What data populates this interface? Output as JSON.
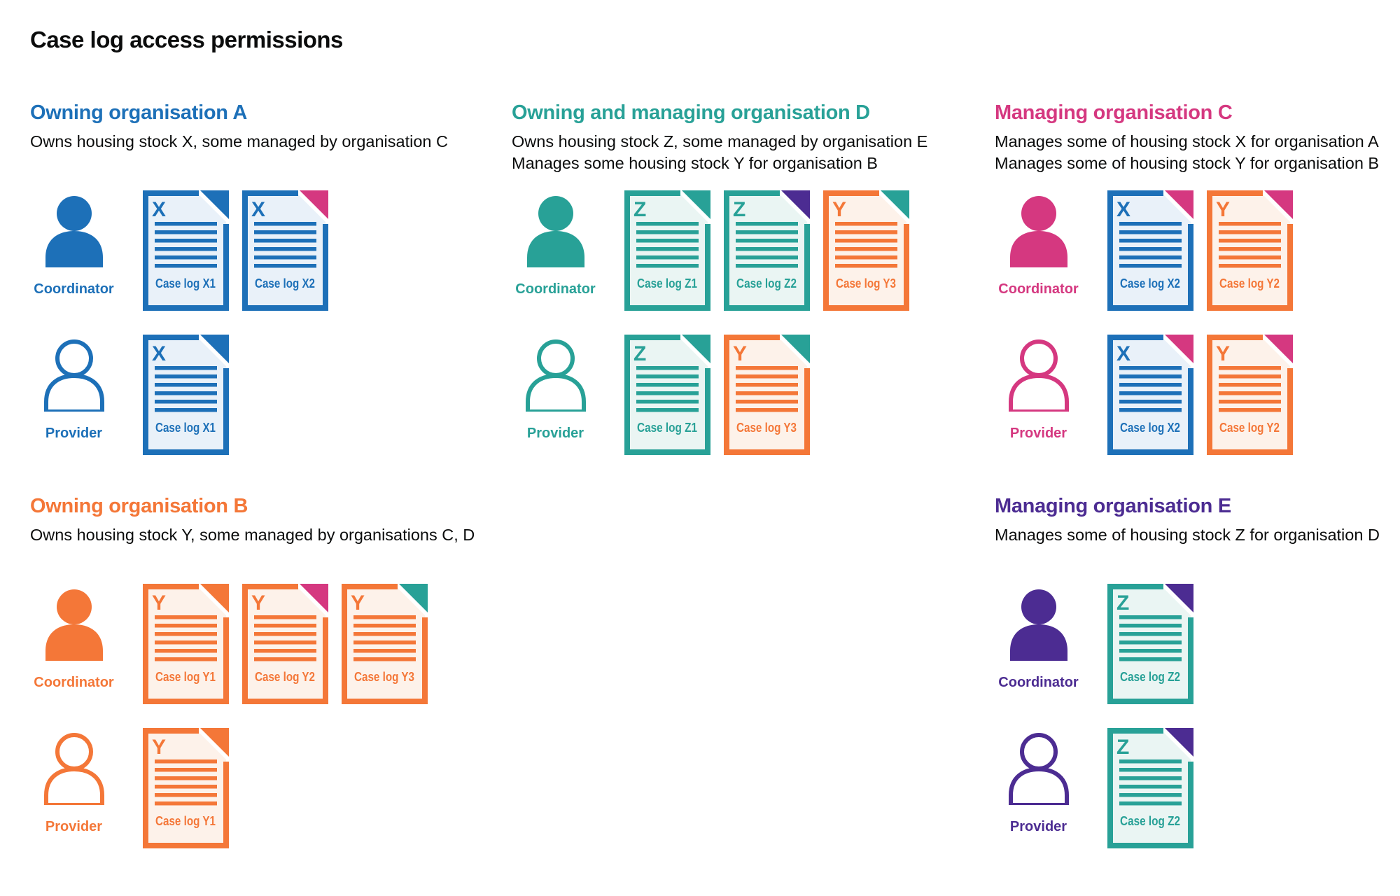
{
  "title": "Case log access permissions",
  "palette": {
    "blue": {
      "main": "#1d70b8",
      "tint": "#e9f1f9"
    },
    "teal": {
      "main": "#28a197",
      "tint": "#eaf5f3"
    },
    "orange": {
      "main": "#f47738",
      "tint": "#fdf2ea"
    },
    "pink": {
      "main": "#d53880",
      "tint": "#fbebf2"
    },
    "purple": {
      "main": "#4c2c92",
      "tint": "#edeaf5"
    },
    "text": "#0b0c0c"
  },
  "roles": {
    "coordinator": "Coordinator",
    "provider": "Provider"
  },
  "organisations": [
    {
      "name": "Owning organisation A",
      "color": "blue",
      "description_lines": [
        "Owns housing stock X, some managed by organisation C"
      ],
      "rows": [
        {
          "role": "coordinator",
          "docs": [
            {
              "letter": "X",
              "label": "Case log X1",
              "doc_color": "blue",
              "flap_color": "blue"
            },
            {
              "letter": "X",
              "label": "Case log X2",
              "doc_color": "blue",
              "flap_color": "pink"
            }
          ]
        },
        {
          "role": "provider",
          "docs": [
            {
              "letter": "X",
              "label": "Case log X1",
              "doc_color": "blue",
              "flap_color": "blue"
            }
          ]
        }
      ]
    },
    {
      "name": "Owning and managing organisation D",
      "color": "teal",
      "description_lines": [
        "Owns housing stock Z, some managed by organisation E",
        "Manages some housing stock Y for organisation B"
      ],
      "rows": [
        {
          "role": "coordinator",
          "docs": [
            {
              "letter": "Z",
              "label": "Case log Z1",
              "doc_color": "teal",
              "flap_color": "teal"
            },
            {
              "letter": "Z",
              "label": "Case log Z2",
              "doc_color": "teal",
              "flap_color": "purple"
            },
            {
              "letter": "Y",
              "label": "Case log Y3",
              "doc_color": "orange",
              "flap_color": "teal"
            }
          ]
        },
        {
          "role": "provider",
          "docs": [
            {
              "letter": "Z",
              "label": "Case log Z1",
              "doc_color": "teal",
              "flap_color": "teal"
            },
            {
              "letter": "Y",
              "label": "Case log Y3",
              "doc_color": "orange",
              "flap_color": "teal"
            }
          ]
        }
      ]
    },
    {
      "name": "Managing organisation C",
      "color": "pink",
      "description_lines": [
        "Manages some of housing stock X for organisation A",
        "Manages some of housing stock Y for organisation B"
      ],
      "rows": [
        {
          "role": "coordinator",
          "docs": [
            {
              "letter": "X",
              "label": "Case log X2",
              "doc_color": "blue",
              "flap_color": "pink"
            },
            {
              "letter": "Y",
              "label": "Case log Y2",
              "doc_color": "orange",
              "flap_color": "pink"
            }
          ]
        },
        {
          "role": "provider",
          "docs": [
            {
              "letter": "X",
              "label": "Case log X2",
              "doc_color": "blue",
              "flap_color": "pink"
            },
            {
              "letter": "Y",
              "label": "Case log Y2",
              "doc_color": "orange",
              "flap_color": "pink"
            }
          ]
        }
      ]
    },
    {
      "name": "Owning organisation B",
      "color": "orange",
      "description_lines": [
        "Owns housing stock Y, some managed by organisations C, D"
      ],
      "rows": [
        {
          "role": "coordinator",
          "docs": [
            {
              "letter": "Y",
              "label": "Case log Y1",
              "doc_color": "orange",
              "flap_color": "orange"
            },
            {
              "letter": "Y",
              "label": "Case log Y2",
              "doc_color": "orange",
              "flap_color": "pink"
            },
            {
              "letter": "Y",
              "label": "Case log Y3",
              "doc_color": "orange",
              "flap_color": "teal"
            }
          ]
        },
        {
          "role": "provider",
          "docs": [
            {
              "letter": "Y",
              "label": "Case log Y1",
              "doc_color": "orange",
              "flap_color": "orange"
            }
          ]
        }
      ]
    },
    {
      "name": "Managing organisation E",
      "color": "purple",
      "description_lines": [
        "Manages some of housing stock Z for organisation D"
      ],
      "rows": [
        {
          "role": "coordinator",
          "docs": [
            {
              "letter": "Z",
              "label": "Case log Z2",
              "doc_color": "teal",
              "flap_color": "purple"
            }
          ]
        },
        {
          "role": "provider",
          "docs": [
            {
              "letter": "Z",
              "label": "Case log Z2",
              "doc_color": "teal",
              "flap_color": "purple"
            }
          ]
        }
      ]
    }
  ]
}
